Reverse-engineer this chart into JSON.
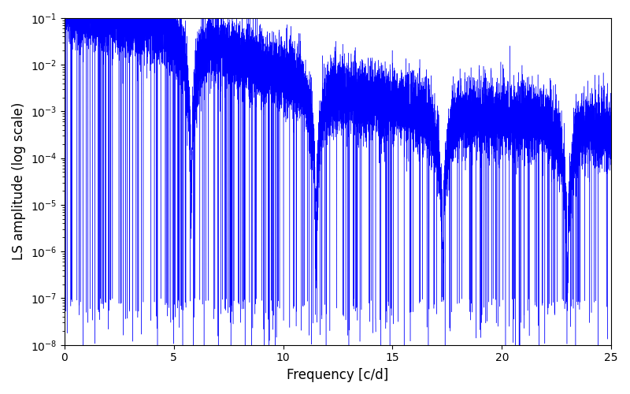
{
  "xlabel": "Frequency [c/d]",
  "ylabel": "LS amplitude (log scale)",
  "xlim": [
    0,
    25
  ],
  "ylim_log": [
    -8,
    -1
  ],
  "line_color": "#0000ff",
  "line_width": 0.3,
  "figsize": [
    8.0,
    5.0
  ],
  "dpi": 100,
  "background_color": "#ffffff",
  "seed": 12345,
  "n_points": 15000,
  "freq_max": 25.0,
  "noise_sigma": 0.8
}
